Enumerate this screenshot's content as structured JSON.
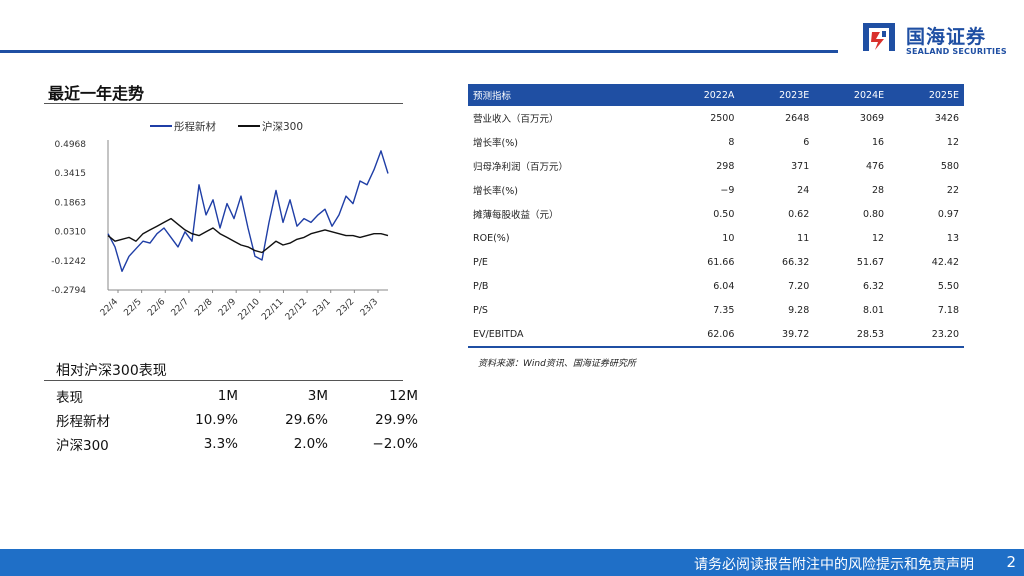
{
  "header": {
    "logo_cn": "国海证券",
    "logo_en": "SEALAND SECURITIES",
    "accent": "#1f4fa3"
  },
  "section_title": "最近一年走势",
  "chart_data": {
    "type": "line",
    "title": "",
    "xlabel": "",
    "ylabel": "",
    "legend_position": "top",
    "ylim": [
      -0.2794,
      0.58
    ],
    "yticks": [
      "0.4968",
      "0.3415",
      "0.1863",
      "0.0310",
      "-0.1242",
      "-0.2794"
    ],
    "ytick_values": [
      0.4968,
      0.3415,
      0.1863,
      0.031,
      -0.1242,
      -0.2794
    ],
    "xticks": [
      "22/4",
      "22/5",
      "22/6",
      "22/7",
      "22/8",
      "22/9",
      "22/10",
      "22/11",
      "22/12",
      "23/1",
      "23/2",
      "23/3"
    ],
    "x": [
      "22/4",
      "22/4",
      "22/4",
      "22/5",
      "22/5",
      "22/5",
      "22/5",
      "22/6",
      "22/6",
      "22/6",
      "22/7",
      "22/7",
      "22/7",
      "22/8",
      "22/8",
      "22/8",
      "22/8",
      "22/9",
      "22/9",
      "22/9",
      "22/10",
      "22/10",
      "22/10",
      "22/10",
      "22/11",
      "22/11",
      "22/11",
      "22/12",
      "22/12",
      "22/12",
      "23/1",
      "23/1",
      "23/1",
      "23/2",
      "23/2",
      "23/2",
      "23/3",
      "23/3",
      "23/3",
      "23/3",
      "23/4"
    ],
    "series": [
      {
        "name": "彤程新材",
        "color": "#1f3ea6",
        "values": [
          0.02,
          -0.05,
          -0.18,
          -0.1,
          -0.06,
          -0.02,
          -0.03,
          0.02,
          0.05,
          0.0,
          -0.05,
          0.03,
          -0.02,
          0.28,
          0.12,
          0.2,
          0.05,
          0.18,
          0.1,
          0.22,
          0.05,
          -0.1,
          -0.12,
          0.08,
          0.25,
          0.08,
          0.2,
          0.06,
          0.1,
          0.08,
          0.12,
          0.15,
          0.06,
          0.12,
          0.22,
          0.18,
          0.3,
          0.28,
          0.36,
          0.46,
          0.34
        ]
      },
      {
        "name": "沪深300",
        "color": "#111111",
        "values": [
          0.01,
          -0.02,
          -0.01,
          0.0,
          -0.02,
          0.02,
          0.04,
          0.06,
          0.08,
          0.1,
          0.07,
          0.04,
          0.02,
          0.01,
          0.03,
          0.05,
          0.02,
          0.0,
          -0.02,
          -0.04,
          -0.05,
          -0.07,
          -0.08,
          -0.05,
          -0.02,
          -0.04,
          -0.03,
          -0.01,
          0.0,
          0.02,
          0.03,
          0.04,
          0.03,
          0.02,
          0.01,
          0.01,
          0.0,
          0.01,
          0.02,
          0.02,
          0.01
        ]
      }
    ]
  },
  "relative_perf": {
    "title": "相对沪深300表现",
    "headers": [
      "表现",
      "1M",
      "3M",
      "12M"
    ],
    "rows": [
      [
        "彤程新材",
        "10.9%",
        "29.6%",
        "29.9%"
      ],
      [
        "沪深300",
        "3.3%",
        "2.0%",
        "−2.0%"
      ]
    ]
  },
  "forecast": {
    "headers": [
      "预测指标",
      "2022A",
      "2023E",
      "2024E",
      "2025E"
    ],
    "rows": [
      [
        "营业收入（百万元）",
        "2500",
        "2648",
        "3069",
        "3426"
      ],
      [
        "增长率(%)",
        "8",
        "6",
        "16",
        "12"
      ],
      [
        "归母净利润（百万元）",
        "298",
        "371",
        "476",
        "580"
      ],
      [
        "增长率(%)",
        "−9",
        "24",
        "28",
        "22"
      ],
      [
        "摊薄每股收益（元）",
        "0.50",
        "0.62",
        "0.80",
        "0.97"
      ],
      [
        "ROE(%)",
        "10",
        "11",
        "12",
        "13"
      ],
      [
        "P/E",
        "61.66",
        "66.32",
        "51.67",
        "42.42"
      ],
      [
        "P/B",
        "6.04",
        "7.20",
        "6.32",
        "5.50"
      ],
      [
        "P/S",
        "7.35",
        "9.28",
        "8.01",
        "7.18"
      ],
      [
        "EV/EBITDA",
        "62.06",
        "39.72",
        "28.53",
        "23.20"
      ]
    ],
    "source": "资料来源：Wind资讯、国海证券研究所"
  },
  "footer": {
    "disclaimer": "请务必阅读报告附注中的风险提示和免责声明",
    "page": "2",
    "bar_color": "#1f6fc7"
  }
}
